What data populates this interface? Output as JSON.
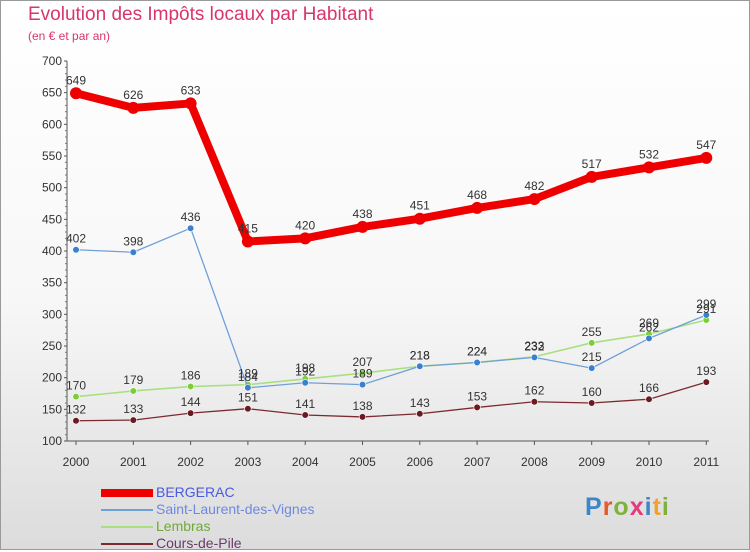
{
  "header": {
    "title": "Evolution des Impôts locaux par Habitant",
    "subtitle": "(en € et par an)"
  },
  "logo": {
    "text": "Proxiti",
    "letter_colors": [
      "#3a86c8",
      "#e45a2a",
      "#7fb23a",
      "#e43c7a",
      "#3a86c8",
      "#f2a22a",
      "#7fb23a"
    ]
  },
  "chart_data": {
    "type": "line",
    "title": "Evolution des Impôts locaux par Habitant",
    "subtitle": "(en € et par an)",
    "xlabel": "",
    "ylabel": "",
    "x": [
      "2000",
      "2001",
      "2002",
      "2003",
      "2004",
      "2005",
      "2006",
      "2007",
      "2008",
      "2009",
      "2010",
      "2011"
    ],
    "ylim": [
      100,
      700
    ],
    "yticks": [
      100,
      150,
      200,
      250,
      300,
      350,
      400,
      450,
      500,
      550,
      600,
      650,
      700
    ],
    "grid": false,
    "legend_position": "bottom-left",
    "series": [
      {
        "name": "BERGERAC",
        "color": "#ee0000",
        "label_color": "#4a5be0",
        "marker_color": "#ee0000",
        "values": [
          649,
          626,
          633,
          415,
          420,
          438,
          451,
          468,
          482,
          517,
          532,
          547
        ]
      },
      {
        "name": "Saint-Laurent-des-Vignes",
        "color": "#6fa0d8",
        "label_color": "#6f88e0",
        "marker_color": "#3a7fd0",
        "values": [
          402,
          398,
          436,
          184,
          192,
          189,
          218,
          224,
          232,
          215,
          262,
          299
        ]
      },
      {
        "name": "Lembras",
        "color": "#a8e080",
        "label_color": "#6faa38",
        "marker_color": "#7ccd38",
        "values": [
          170,
          179,
          186,
          189,
          198,
          207,
          218,
          224,
          233,
          255,
          269,
          291
        ]
      },
      {
        "name": "Cours-de-Pile",
        "color": "#7a2a30",
        "label_color": "#6a3a6a",
        "marker_color": "#6a1a20",
        "values": [
          132,
          133,
          144,
          151,
          141,
          138,
          143,
          153,
          162,
          160,
          166,
          193
        ]
      }
    ]
  }
}
